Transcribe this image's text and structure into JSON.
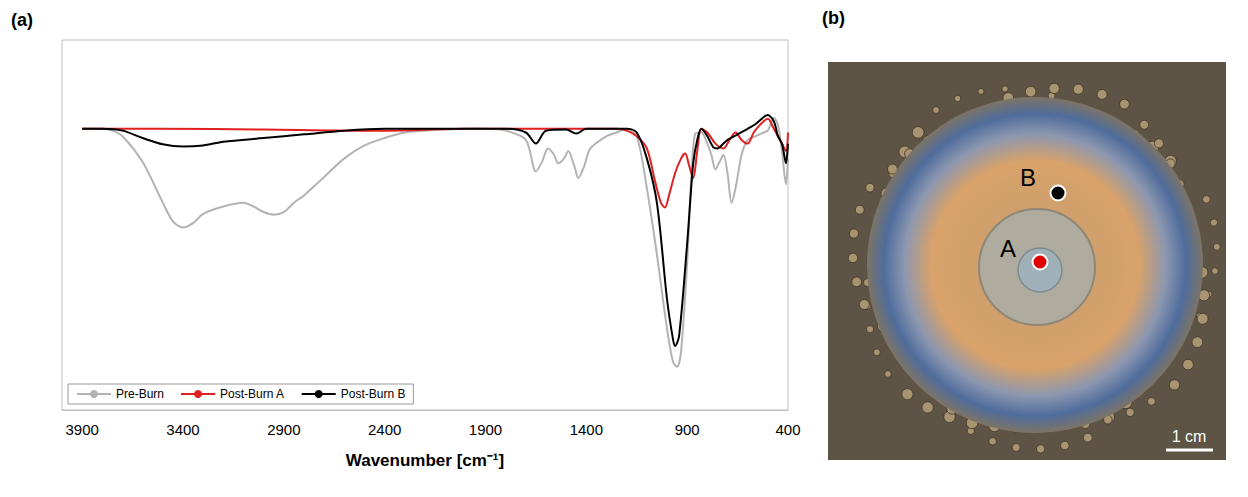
{
  "chart_data": {
    "type": "line",
    "title": "(a)",
    "xlabel": "Wavenumber [cm⁻¹]",
    "xlim": [
      4000,
      400
    ],
    "xticks": [
      3900,
      3400,
      2900,
      2400,
      1900,
      1400,
      900,
      400
    ],
    "ylim": [
      0,
      100
    ],
    "yticks": [],
    "tick_labels": "x",
    "grid": false,
    "legend": "lower left",
    "series": [
      {
        "name": "Pre-Burn",
        "color": "#b3b3b3",
        "x": [
          3900,
          3800,
          3750,
          3700,
          3600,
          3500,
          3450,
          3400,
          3350,
          3300,
          3200,
          3100,
          3050,
          3000,
          2950,
          2900,
          2850,
          2800,
          2700,
          2600,
          2500,
          2400,
          2300,
          2200,
          2000,
          1900,
          1800,
          1700,
          1650,
          1620,
          1590,
          1560,
          1540,
          1510,
          1490,
          1460,
          1440,
          1410,
          1380,
          1300,
          1250,
          1200,
          1150,
          1100,
          1050,
          1000,
          970,
          950,
          930,
          900,
          880,
          860,
          830,
          800,
          780,
          760,
          740,
          720,
          700,
          680,
          660,
          630,
          600,
          560,
          520,
          500,
          470,
          450,
          430,
          410,
          400
        ],
        "values": [
          76,
          76,
          75.5,
          74,
          67,
          56,
          51,
          49.3,
          50.5,
          53,
          55,
          56,
          55,
          53.5,
          52.8,
          53.5,
          56,
          58,
          63,
          68,
          71.5,
          73.5,
          75,
          75.5,
          76,
          76,
          75.5,
          73,
          64.5,
          67,
          70.7,
          69,
          66.7,
          68,
          70,
          66,
          62.7,
          66,
          70.7,
          74,
          75,
          76,
          74,
          60,
          42,
          22,
          13,
          11.7,
          16,
          40,
          62,
          74.7,
          75,
          72,
          69,
          65,
          67,
          69,
          64,
          56,
          60,
          69,
          73,
          74,
          75,
          75.5,
          79,
          77,
          70,
          61,
          68
        ]
      },
      {
        "name": "Post-Burn A",
        "color": "#e02020",
        "x": [
          3900,
          3500,
          3000,
          2500,
          2400,
          2000,
          1500,
          1300,
          1250,
          1200,
          1150,
          1100,
          1060,
          1030,
          1010,
          990,
          960,
          930,
          910,
          890,
          870,
          850,
          830,
          800,
          760,
          720,
          690,
          660,
          630,
          600,
          570,
          540,
          500,
          470,
          450,
          430,
          410,
          400
        ],
        "values": [
          76,
          76,
          75.8,
          75.5,
          75.5,
          76,
          76,
          76,
          76,
          75.5,
          74,
          70.7,
          62,
          56,
          54.7,
          58,
          64,
          68,
          69.3,
          66,
          62.7,
          70,
          76,
          75,
          72,
          70.7,
          73,
          75,
          73,
          72,
          75,
          77,
          78.7,
          76,
          74,
          72,
          70,
          75
        ]
      },
      {
        "name": "Post-Burn B",
        "color": "#000000",
        "x": [
          3900,
          3800,
          3700,
          3600,
          3500,
          3400,
          3300,
          3200,
          3000,
          2800,
          2600,
          2400,
          2200,
          2000,
          1800,
          1700,
          1650,
          1600,
          1500,
          1450,
          1400,
          1300,
          1200,
          1150,
          1100,
          1050,
          1000,
          970,
          960,
          940,
          900,
          870,
          850,
          830,
          800,
          770,
          750,
          720,
          700,
          650,
          600,
          560,
          500,
          470,
          450,
          430,
          410,
          400
        ],
        "values": [
          76,
          76,
          75.5,
          73.5,
          71.8,
          71.2,
          71.5,
          72.5,
          73.5,
          74.5,
          75.5,
          76,
          76,
          76,
          76,
          75,
          72,
          75.5,
          75.8,
          74.7,
          76,
          76,
          76,
          75,
          68,
          56,
          30,
          19,
          17.3,
          20,
          45,
          66.7,
          73,
          76,
          74,
          71,
          70.7,
          72,
          73,
          74.5,
          76,
          77.3,
          79.7,
          78,
          74,
          72,
          66.7,
          72
        ]
      }
    ]
  },
  "photo": {
    "label": "(b)",
    "points": [
      {
        "label": "A",
        "color": "#e00000"
      },
      {
        "label": "B",
        "color": "#000000"
      }
    ],
    "scale_bar": "1 cm"
  }
}
